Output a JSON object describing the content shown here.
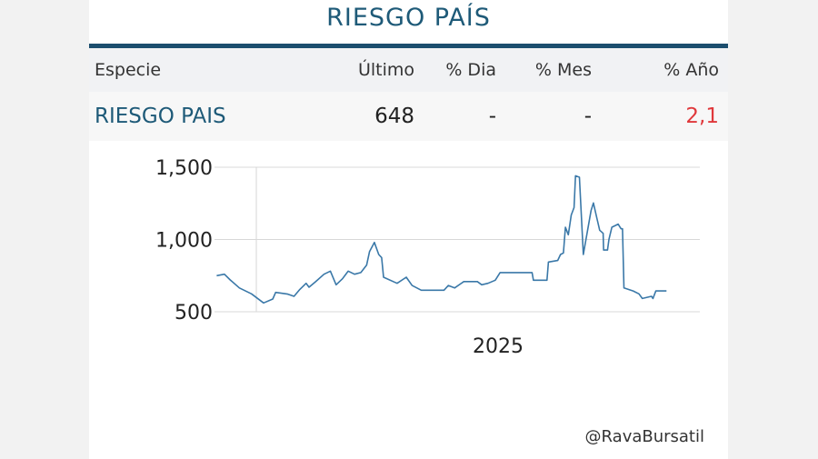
{
  "title": "RIESGO PAÍS",
  "table": {
    "headers": [
      "Especie",
      "Último",
      "% Dia",
      "% Mes",
      "% Año"
    ],
    "row": {
      "especie": "RIESGO PAIS",
      "ultimo": "648",
      "dia": "-",
      "mes": "-",
      "anio": "2,1"
    },
    "colors": {
      "name": "#1e5a78",
      "negative": "#e0383b"
    }
  },
  "chart_data": {
    "type": "line",
    "title": "",
    "xlabel": "",
    "ylabel": "",
    "x_tick_labels": [
      "2025"
    ],
    "y_tick_labels": [
      "1,500",
      "1,000",
      "500"
    ],
    "y_ticks": [
      1500,
      1000,
      500
    ],
    "ylim": [
      500,
      1500
    ],
    "xlim": [
      2024.921,
      2025.917
    ],
    "grid": true,
    "line_color": "#3a78a8",
    "points": [
      [
        2024.918,
        750
      ],
      [
        2024.934,
        760
      ],
      [
        2024.946,
        720
      ],
      [
        2024.965,
        665
      ],
      [
        2024.99,
        624
      ],
      [
        2025.015,
        561
      ],
      [
        2025.034,
        588
      ],
      [
        2025.04,
        634
      ],
      [
        2025.065,
        622
      ],
      [
        2025.078,
        607
      ],
      [
        2025.09,
        655
      ],
      [
        2025.103,
        697
      ],
      [
        2025.109,
        670
      ],
      [
        2025.122,
        707
      ],
      [
        2025.14,
        760
      ],
      [
        2025.153,
        781
      ],
      [
        2025.165,
        687
      ],
      [
        2025.178,
        728
      ],
      [
        2025.19,
        781
      ],
      [
        2025.203,
        760
      ],
      [
        2025.216,
        771
      ],
      [
        2025.228,
        823
      ],
      [
        2025.234,
        917
      ],
      [
        2025.244,
        980
      ],
      [
        2025.253,
        896
      ],
      [
        2025.259,
        875
      ],
      [
        2025.263,
        739
      ],
      [
        2025.291,
        697
      ],
      [
        2025.31,
        739
      ],
      [
        2025.322,
        682
      ],
      [
        2025.341,
        649
      ],
      [
        2025.388,
        649
      ],
      [
        2025.397,
        682
      ],
      [
        2025.41,
        665
      ],
      [
        2025.429,
        709
      ],
      [
        2025.457,
        709
      ],
      [
        2025.466,
        687
      ],
      [
        2025.479,
        697
      ],
      [
        2025.494,
        718
      ],
      [
        2025.504,
        771
      ],
      [
        2025.57,
        771
      ],
      [
        2025.573,
        718
      ],
      [
        2025.601,
        718
      ],
      [
        2025.604,
        844
      ],
      [
        2025.623,
        855
      ],
      [
        2025.629,
        896
      ],
      [
        2025.635,
        907
      ],
      [
        2025.639,
        1085
      ],
      [
        2025.645,
        1033
      ],
      [
        2025.651,
        1169
      ],
      [
        2025.657,
        1221
      ],
      [
        2025.66,
        1441
      ],
      [
        2025.668,
        1431
      ],
      [
        2025.676,
        896
      ],
      [
        2025.685,
        1064
      ],
      [
        2025.692,
        1200
      ],
      [
        2025.697,
        1253
      ],
      [
        2025.704,
        1148
      ],
      [
        2025.71,
        1064
      ],
      [
        2025.717,
        1043
      ],
      [
        2025.718,
        927
      ],
      [
        2025.726,
        927
      ],
      [
        2025.729,
        1001
      ],
      [
        2025.735,
        1085
      ],
      [
        2025.748,
        1106
      ],
      [
        2025.754,
        1074
      ],
      [
        2025.757,
        1074
      ],
      [
        2025.76,
        665
      ],
      [
        2025.779,
        644
      ],
      [
        2025.791,
        624
      ],
      [
        2025.798,
        592
      ],
      [
        2025.817,
        607
      ],
      [
        2025.82,
        592
      ],
      [
        2025.826,
        644
      ],
      [
        2025.848,
        644
      ]
    ]
  },
  "footer": {
    "handle": "@RavaBursatil"
  }
}
